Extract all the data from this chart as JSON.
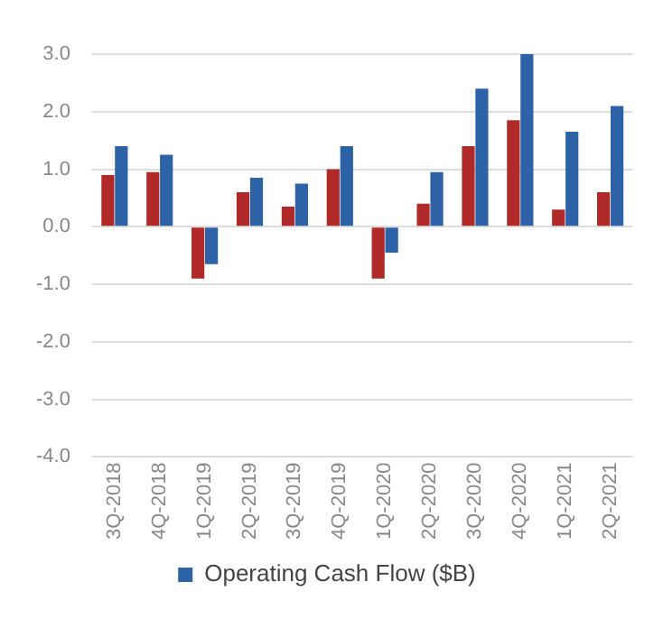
{
  "chart_data": {
    "type": "bar",
    "categories": [
      "3Q-2018",
      "4Q-2018",
      "1Q-2019",
      "2Q-2019",
      "3Q-2019",
      "4Q-2019",
      "1Q-2020",
      "2Q-2020",
      "3Q-2020",
      "4Q-2020",
      "1Q-2021",
      "2Q-2021"
    ],
    "series": [
      {
        "color": "#b02a2a",
        "values": [
          0.9,
          0.95,
          -0.9,
          0.6,
          0.35,
          1.0,
          -0.9,
          0.4,
          1.4,
          1.85,
          0.3,
          0.6
        ]
      },
      {
        "name": "Operating Cash Flow ($B)",
        "color": "#2e62a6",
        "values": [
          1.4,
          1.25,
          -0.65,
          0.85,
          0.75,
          1.4,
          -0.45,
          0.95,
          2.4,
          3.0,
          1.65,
          2.1
        ]
      }
    ],
    "ylim": [
      -4,
      3
    ],
    "yticks": [
      {
        "value": -4,
        "label": "-4.0"
      },
      {
        "value": -3,
        "label": "-3.0"
      },
      {
        "value": -2,
        "label": "-2.0"
      },
      {
        "value": -1,
        "label": "-1.0"
      },
      {
        "value": 0,
        "label": "0.0"
      },
      {
        "value": 1,
        "label": "1.0"
      },
      {
        "value": 2,
        "label": "2.0"
      },
      {
        "value": 3,
        "label": "3.0"
      }
    ],
    "grid": "y",
    "legend": "bottom"
  }
}
